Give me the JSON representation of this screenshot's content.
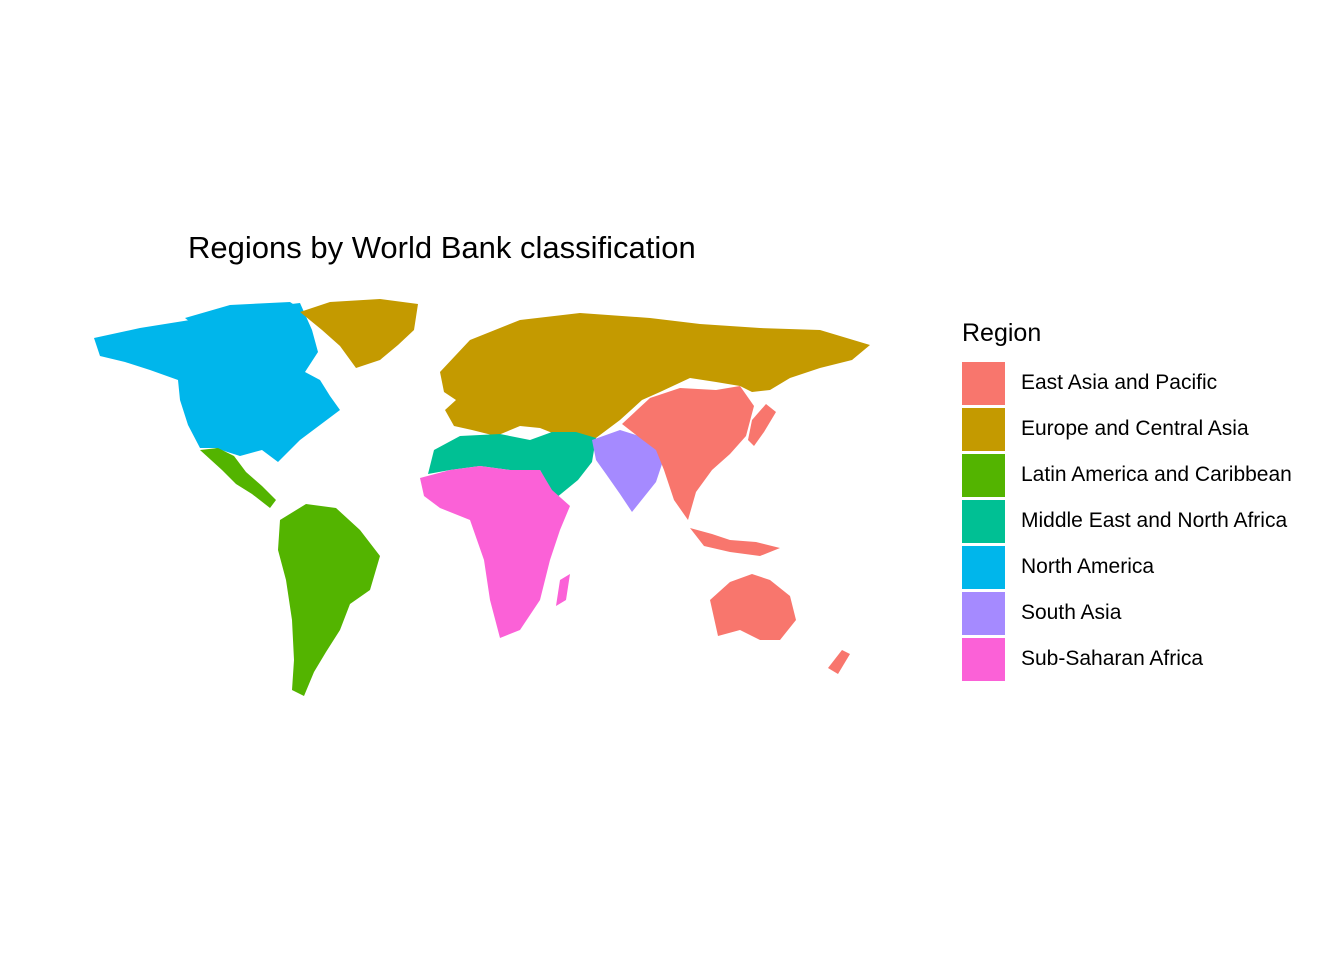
{
  "title": "Regions by World Bank classification",
  "legend": {
    "title": "Region",
    "items": [
      {
        "id": "eap",
        "label": "East Asia and Pacific",
        "color": "#F8766D"
      },
      {
        "id": "eca",
        "label": "Europe and Central Asia",
        "color": "#C49A00"
      },
      {
        "id": "lac",
        "label": "Latin America and Caribbean",
        "color": "#53B400"
      },
      {
        "id": "mena",
        "label": "Middle East and North Africa",
        "color": "#00C094"
      },
      {
        "id": "na",
        "label": "North America",
        "color": "#00B6EB"
      },
      {
        "id": "sa",
        "label": "South Asia",
        "color": "#A58AFF"
      },
      {
        "id": "ssa",
        "label": "Sub-Saharan Africa",
        "color": "#FB61D7"
      }
    ]
  }
}
